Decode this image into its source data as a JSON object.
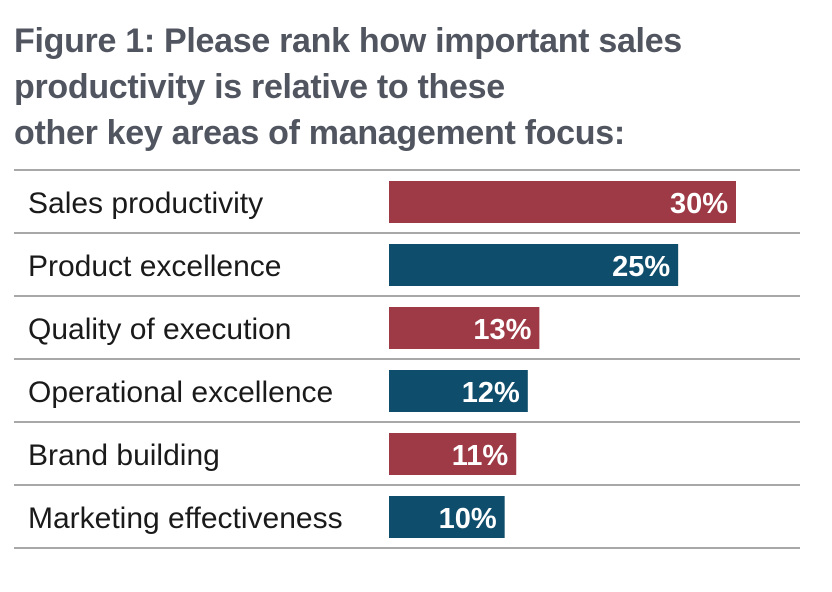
{
  "title_lines": [
    "Figure 1: Please rank how important sales",
    "productivity is relative to these",
    "other key areas of management focus:"
  ],
  "colors": {
    "red": "#9e3a45",
    "blue": "#0f4d6c",
    "rule": "#8c8c8c",
    "title": "#505560"
  },
  "chart_data": {
    "type": "bar",
    "orientation": "horizontal",
    "categories": [
      "Sales productivity",
      "Product excellence",
      "Quality of execution",
      "Operational excellence",
      "Brand building",
      "Marketing effectiveness"
    ],
    "values": [
      30,
      25,
      13,
      12,
      11,
      10
    ],
    "value_labels": [
      "30%",
      "25%",
      "13%",
      "12%",
      "11%",
      "10%"
    ],
    "bar_colors": [
      "#9e3a45",
      "#0f4d6c",
      "#9e3a45",
      "#0f4d6c",
      "#9e3a45",
      "#0f4d6c"
    ],
    "xlabel": "",
    "ylabel": "",
    "xlim": [
      0,
      30
    ],
    "grid": false,
    "legend": "none"
  }
}
